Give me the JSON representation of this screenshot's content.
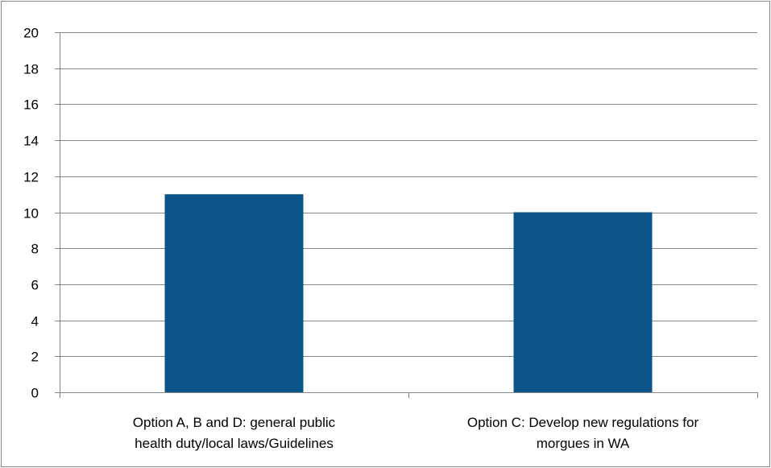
{
  "chart_data": {
    "type": "bar",
    "categories": [
      [
        "Option A, B and D: general public",
        "health duty/local laws/Guidelines"
      ],
      [
        "Option C: Develop new regulations for",
        "morgues in WA"
      ]
    ],
    "values": [
      11,
      10
    ],
    "ylim": [
      0,
      20
    ],
    "yticks": [
      0,
      2,
      4,
      6,
      8,
      10,
      12,
      14,
      16,
      18,
      20
    ],
    "grid": true,
    "legend": "none",
    "colors": {
      "bar": "#0b5489",
      "grid": "#868686",
      "axis": "#868686",
      "text": "#000000"
    }
  }
}
